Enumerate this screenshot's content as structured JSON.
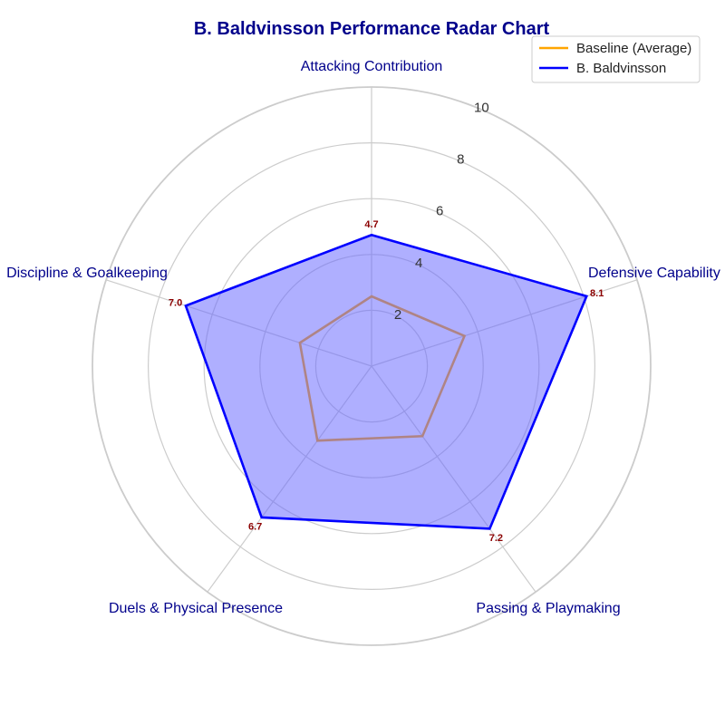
{
  "chart_data": {
    "type": "radar",
    "title": "B. Baldvinsson Performance Radar Chart",
    "categories": [
      "Attacking Contribution",
      "Defensive Capability",
      "Passing & Playmaking",
      "Duels & Physical Presence",
      "Discipline & Goalkeeping"
    ],
    "rlim": [
      0,
      10
    ],
    "rticks": [
      2,
      4,
      6,
      8,
      10
    ],
    "grid": true,
    "legend_position": "top-right",
    "series": [
      {
        "name": "Baseline (Average)",
        "values": [
          2.5,
          3.5,
          3.1,
          3.3,
          2.7
        ],
        "color": "#ffa500",
        "fill": false,
        "show_labels": false
      },
      {
        "name": "B. Baldvinsson",
        "values": [
          4.7,
          8.1,
          7.2,
          6.7,
          7.0
        ],
        "color": "#0000ff",
        "fill": true,
        "fill_color": "#6666ff",
        "show_labels": true,
        "labels": [
          "4.7",
          "8.1",
          "7.2",
          "6.7",
          "7.0"
        ]
      }
    ],
    "colors": {
      "title": "#00008b",
      "axis_label": "#00008b",
      "data_label": "#8b0000",
      "grid": "#cccccc"
    }
  }
}
